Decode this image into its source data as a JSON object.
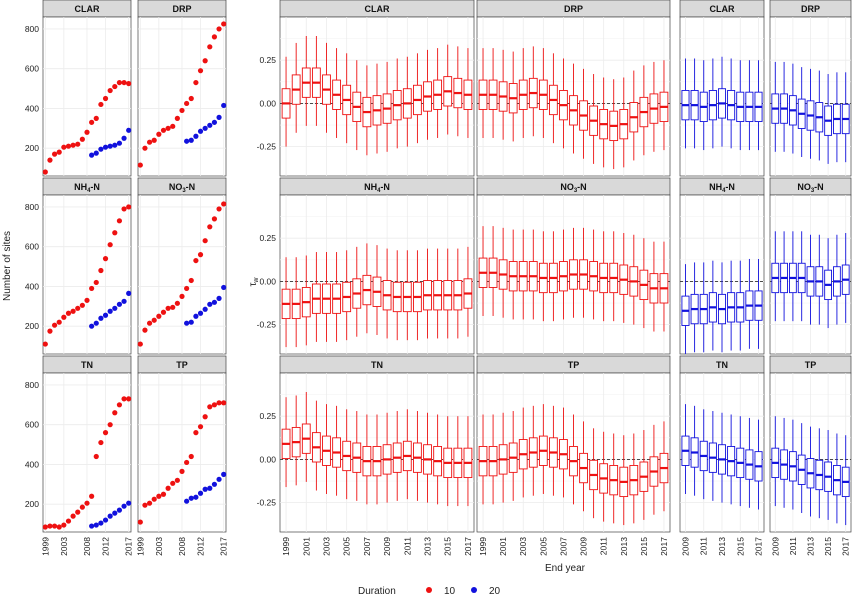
{
  "colors": {
    "d10": "#ee1111",
    "d20": "#1111dd",
    "strip": "#d9d9d9",
    "grid": "#ececec",
    "panel_border": "#444444"
  },
  "labels": {
    "count_ylabel": "Number of sites",
    "tau_ylabel": "τw",
    "xlabel": "End year",
    "legend_title": "Duration",
    "legend_items": [
      "10",
      "20"
    ]
  },
  "chart_data": [
    {
      "type": "scatter",
      "name": "site counts",
      "facets": [
        "CLAR",
        "DRP",
        "NH4-N",
        "NO3-N",
        "TN",
        "TP"
      ],
      "x_tick_labels": [
        "1999",
        "2003",
        "2008",
        "2012",
        "2017"
      ],
      "x_ticks": [
        1999,
        2003,
        2008,
        2012,
        2017
      ],
      "xlim": [
        1998.5,
        2017.5
      ],
      "y_ticks": [
        200,
        400,
        600,
        800
      ],
      "ylim": [
        60,
        860
      ],
      "series": {
        "CLAR": {
          "d10": [
            80,
            140,
            170,
            180,
            205,
            210,
            215,
            220,
            245,
            280,
            330,
            350,
            420,
            450,
            490,
            510,
            530,
            530,
            525
          ],
          "d20": [
            165,
            175,
            195,
            205,
            210,
            215,
            225,
            250,
            290
          ]
        },
        "DRP": {
          "d10": [
            115,
            200,
            230,
            240,
            270,
            290,
            300,
            310,
            350,
            390,
            425,
            450,
            530,
            590,
            640,
            710,
            760,
            800,
            825
          ],
          "d20": [
            235,
            240,
            260,
            285,
            300,
            315,
            330,
            355,
            415
          ]
        },
        "NH4-N": {
          "d10": [
            110,
            175,
            205,
            220,
            245,
            265,
            275,
            290,
            305,
            330,
            390,
            420,
            480,
            540,
            610,
            670,
            730,
            790,
            800
          ],
          "d20": [
            200,
            215,
            240,
            255,
            275,
            290,
            310,
            325,
            365
          ]
        },
        "NO3-N": {
          "d10": [
            110,
            180,
            215,
            230,
            250,
            270,
            290,
            295,
            315,
            350,
            390,
            430,
            530,
            560,
            630,
            700,
            740,
            790,
            815
          ],
          "d20": [
            215,
            220,
            250,
            265,
            285,
            310,
            320,
            340,
            395
          ]
        },
        "TN": {
          "d10": [
            85,
            90,
            90,
            85,
            95,
            115,
            140,
            160,
            185,
            205,
            240,
            440,
            510,
            560,
            600,
            660,
            700,
            730,
            730
          ],
          "d20": [
            90,
            95,
            105,
            120,
            140,
            155,
            170,
            190,
            205
          ]
        },
        "TP": {
          "d10": [
            110,
            195,
            205,
            225,
            240,
            250,
            280,
            305,
            320,
            365,
            410,
            440,
            560,
            590,
            640,
            690,
            700,
            710,
            710
          ],
          "d20": [
            215,
            230,
            235,
            255,
            275,
            280,
            300,
            325,
            350
          ]
        }
      }
    },
    {
      "type": "box",
      "name": "tau_w distributions",
      "facets": [
        "CLAR",
        "DRP",
        "NH4-N",
        "NO3-N",
        "TN",
        "TP"
      ],
      "ylabel": "τw",
      "y_ticks": [
        0.25,
        0.0,
        -0.25
      ],
      "y_tick_labels": [
        "0.25",
        "0.00",
        "-0.25"
      ],
      "ylim": [
        -0.42,
        0.5
      ],
      "reference_line": 0.0,
      "d10_x": [
        1999,
        2000,
        2001,
        2002,
        2003,
        2004,
        2005,
        2006,
        2007,
        2008,
        2009,
        2010,
        2011,
        2012,
        2013,
        2014,
        2015,
        2016,
        2017
      ],
      "d10_x_tick_labels": [
        "1999",
        "2001",
        "2003",
        "2005",
        "2007",
        "2009",
        "2011",
        "2013",
        "2015",
        "2017"
      ],
      "d20_x": [
        2009,
        2010,
        2011,
        2012,
        2013,
        2014,
        2015,
        2016,
        2017
      ],
      "d20_x_tick_labels": [
        "2009",
        "2011",
        "2013",
        "2015",
        "2017"
      ],
      "d10_medians": {
        "CLAR": [
          0.0,
          0.08,
          0.12,
          0.12,
          0.08,
          0.05,
          0.02,
          -0.02,
          -0.05,
          -0.04,
          -0.03,
          -0.01,
          0.0,
          0.02,
          0.04,
          0.05,
          0.07,
          0.06,
          0.05
        ],
        "DRP": [
          0.05,
          0.05,
          0.04,
          0.03,
          0.05,
          0.06,
          0.05,
          0.02,
          -0.01,
          -0.04,
          -0.07,
          -0.1,
          -0.12,
          -0.13,
          -0.12,
          -0.08,
          -0.05,
          -0.03,
          -0.02
        ],
        "NH4-N": [
          -0.13,
          -0.13,
          -0.12,
          -0.1,
          -0.1,
          -0.1,
          -0.09,
          -0.07,
          -0.05,
          -0.06,
          -0.08,
          -0.09,
          -0.09,
          -0.09,
          -0.08,
          -0.08,
          -0.08,
          -0.08,
          -0.07
        ],
        "NO3-N": [
          0.05,
          0.05,
          0.04,
          0.03,
          0.03,
          0.03,
          0.02,
          0.02,
          0.03,
          0.04,
          0.04,
          0.03,
          0.02,
          0.02,
          0.01,
          0.0,
          -0.02,
          -0.04,
          -0.04
        ],
        "TN": [
          0.09,
          0.1,
          0.12,
          0.07,
          0.05,
          0.04,
          0.02,
          0.01,
          -0.01,
          -0.01,
          0.0,
          0.01,
          0.02,
          0.01,
          0.0,
          -0.01,
          -0.02,
          -0.02,
          -0.02
        ],
        "TP": [
          -0.01,
          -0.01,
          0.0,
          0.01,
          0.03,
          0.04,
          0.05,
          0.04,
          0.03,
          -0.01,
          -0.05,
          -0.09,
          -0.11,
          -0.12,
          -0.13,
          -0.12,
          -0.1,
          -0.07,
          -0.05
        ]
      },
      "d20_medians": {
        "CLAR": [
          -0.01,
          -0.01,
          -0.02,
          -0.01,
          0.0,
          -0.01,
          -0.02,
          -0.02,
          -0.02
        ],
        "DRP": [
          -0.03,
          -0.03,
          -0.04,
          -0.06,
          -0.07,
          -0.08,
          -0.1,
          -0.09,
          -0.09
        ],
        "NH4-N": [
          -0.17,
          -0.16,
          -0.16,
          -0.15,
          -0.16,
          -0.15,
          -0.15,
          -0.14,
          -0.14
        ],
        "NO3-N": [
          0.02,
          0.02,
          0.02,
          0.02,
          0.0,
          0.0,
          -0.02,
          0.0,
          0.01
        ],
        "TN": [
          0.05,
          0.04,
          0.02,
          0.01,
          0.0,
          -0.01,
          -0.02,
          -0.03,
          -0.04
        ],
        "TP": [
          -0.02,
          -0.03,
          -0.04,
          -0.06,
          -0.08,
          -0.09,
          -0.1,
          -0.12,
          -0.13
        ]
      },
      "box_spread": {
        "q_half_width": 0.085,
        "whisker_low": 0.25,
        "whisker_high": 0.27
      }
    }
  ]
}
